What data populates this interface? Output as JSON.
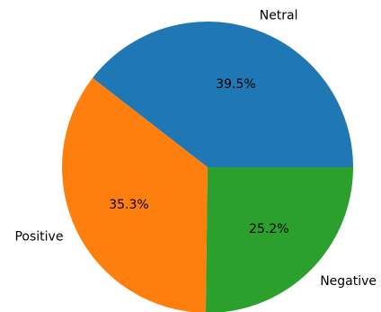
{
  "chart_data": {
    "type": "pie",
    "categories": [
      "Netral",
      "Positive",
      "Negative"
    ],
    "values": [
      39.5,
      35.3,
      25.2
    ],
    "value_labels": [
      "39.5%",
      "35.3%",
      "25.2%"
    ],
    "colors": [
      "#1f77b4",
      "#ff7f0e",
      "#2ca02c"
    ],
    "start_angle_deg": 0,
    "direction": "counterclockwise",
    "title": "",
    "legend": "none"
  }
}
